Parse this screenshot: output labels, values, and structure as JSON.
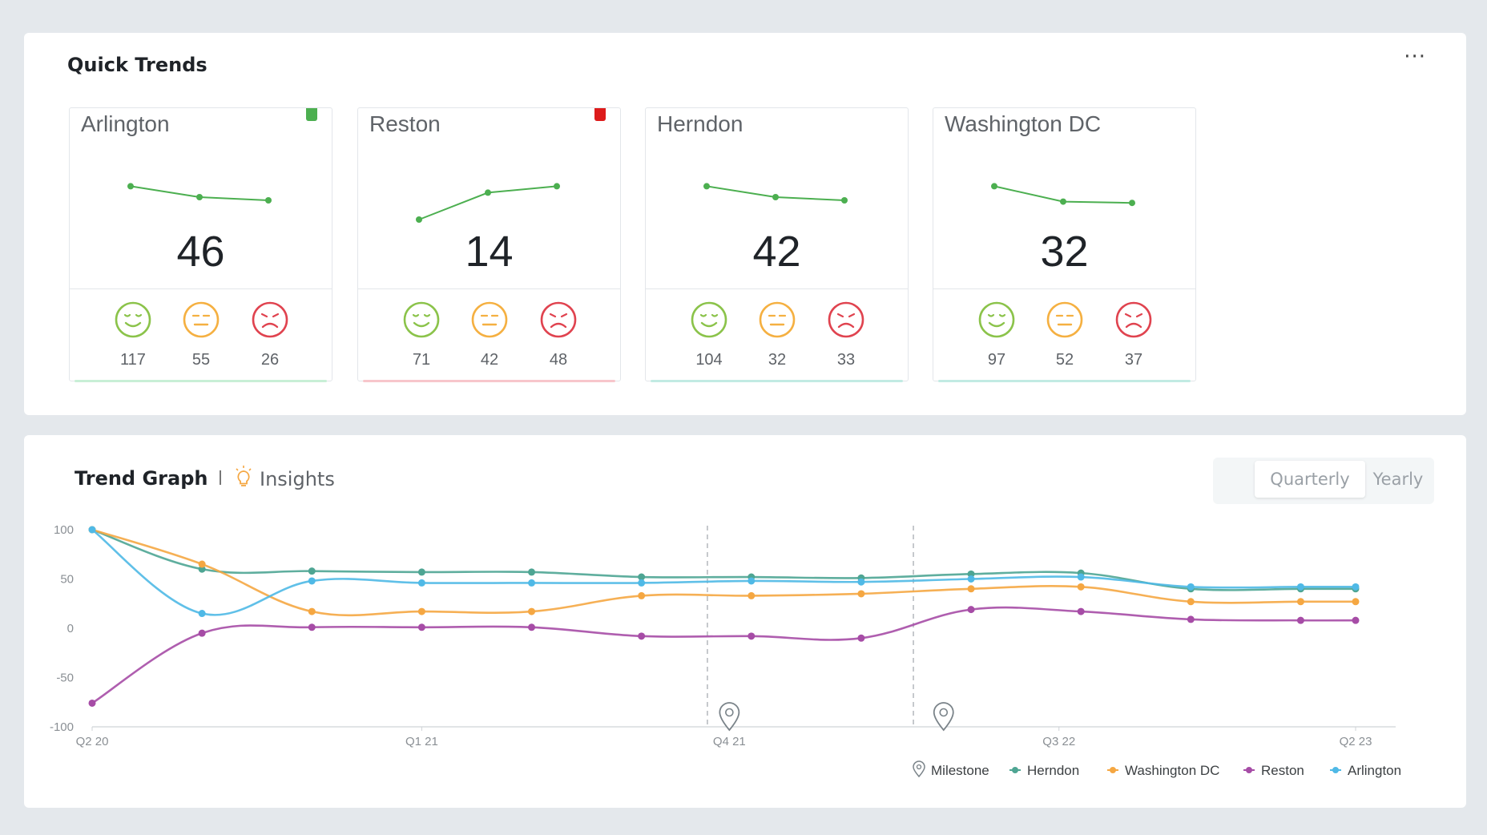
{
  "quick_trends": {
    "title": "Quick Trends",
    "more_label": "···",
    "cards": [
      {
        "name": "Arlington",
        "score": "46",
        "flag_color": "#4caf50",
        "trend": [
          0.72,
          0.55,
          0.5
        ],
        "positive": "117",
        "neutral": "55",
        "negative": "26",
        "accent": "#c8efd6"
      },
      {
        "name": "Reston",
        "score": "14",
        "flag_color": "#dd1b1b",
        "trend": [
          0.2,
          0.62,
          0.72
        ],
        "positive": "71",
        "neutral": "42",
        "negative": "48",
        "accent": "#f7c6cb"
      },
      {
        "name": "Herndon",
        "score": "42",
        "flag_color": "",
        "trend": [
          0.72,
          0.55,
          0.5
        ],
        "positive": "104",
        "neutral": "32",
        "negative": "33",
        "accent": "#c2ebe3"
      },
      {
        "name": "Washington DC",
        "score": "32",
        "flag_color": "",
        "trend": [
          0.72,
          0.48,
          0.46
        ],
        "positive": "97",
        "neutral": "52",
        "negative": "37",
        "accent": "#c2ebe3"
      }
    ]
  },
  "colors": {
    "positive": "#8bc34a",
    "neutral": "#f5b041",
    "negative": "#e0434f",
    "spark": "#4caf50"
  },
  "trend_graph": {
    "title": "Trend Graph",
    "insights_label": "Insights",
    "periods": {
      "quarterly": "Quarterly",
      "yearly": "Yearly"
    }
  },
  "chart_data": {
    "type": "line",
    "title": "Trend Graph",
    "ylim": [
      -100,
      100
    ],
    "yticks": [
      100,
      50,
      0,
      -50,
      -100
    ],
    "xlim": [
      0,
      23
    ],
    "x": [
      0,
      2,
      4,
      6,
      8,
      10,
      12,
      14,
      16,
      18,
      20,
      22,
      23
    ],
    "xticks": [
      {
        "x": 0,
        "label": "Q2 20"
      },
      {
        "x": 6,
        "label": "Q1 21"
      },
      {
        "x": 11.6,
        "label": "Q4 21"
      },
      {
        "x": 17.6,
        "label": "Q3 22"
      },
      {
        "x": 23,
        "label": "Q2 23"
      }
    ],
    "milestones": [
      11.2,
      14.95
    ],
    "milestone_markers": [
      11.6,
      15.5
    ],
    "series": [
      {
        "name": "Herndon",
        "color": "#4ea593",
        "values": [
          100,
          60,
          58,
          57,
          57,
          52,
          52,
          51,
          55,
          56,
          40,
          40,
          40
        ]
      },
      {
        "name": "Washington DC",
        "color": "#f5a742",
        "values": [
          100,
          65,
          17,
          17,
          17,
          33,
          33,
          35,
          40,
          42,
          27,
          27,
          27
        ]
      },
      {
        "name": "Reston",
        "color": "#a64ca6",
        "values": [
          -76,
          -5,
          1,
          1,
          1,
          -8,
          -8,
          -10,
          19,
          17,
          9,
          8,
          8
        ]
      },
      {
        "name": "Arlington",
        "color": "#4fb9e6",
        "values": [
          100,
          15,
          48,
          46,
          46,
          46,
          48,
          47,
          50,
          52,
          42,
          42,
          42
        ]
      }
    ],
    "legend": [
      "Milestone",
      "Herndon",
      "Washington DC",
      "Reston",
      "Arlington"
    ]
  }
}
